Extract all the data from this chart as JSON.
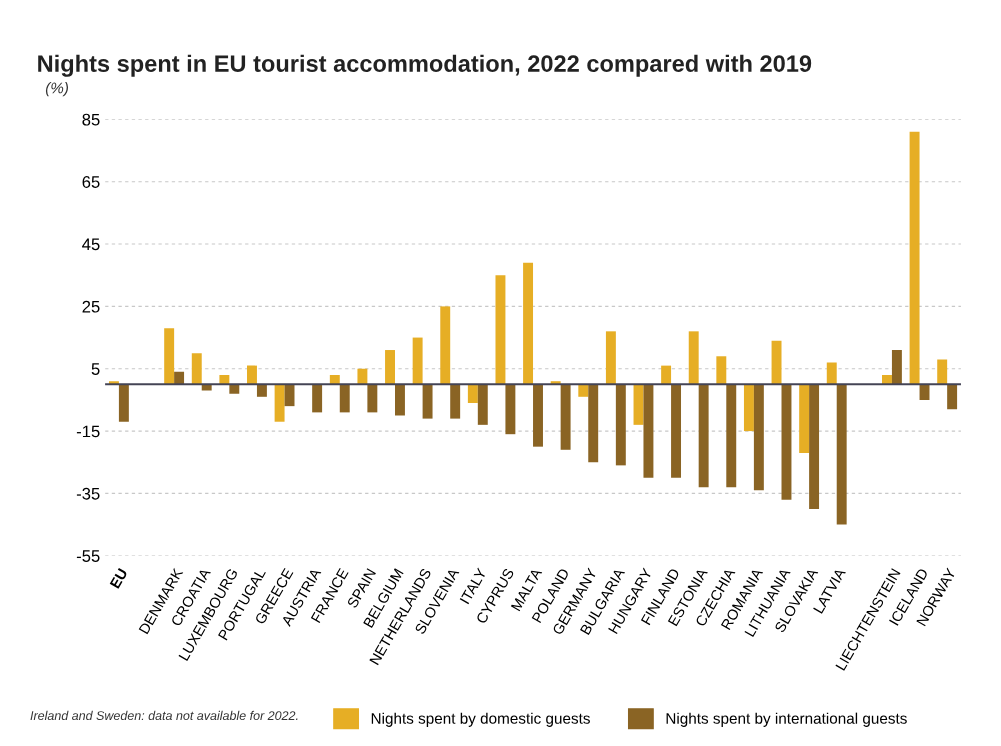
{
  "chart_data": {
    "type": "bar",
    "title": "Nights spent in EU tourist accommodation, 2022 compared with 2019",
    "ylabel": "(%)",
    "categories": [
      "EU",
      null,
      "DENMARK",
      "CROATIA",
      "LUXEMBOURG",
      "PORTUGAL",
      "GREECE",
      "AUSTRIA",
      "FRANCE",
      "SPAIN",
      "BELGIUM",
      "NETHERLANDS",
      "SLOVENIA",
      "ITALY",
      "CYPRUS",
      "MALTA",
      "POLAND",
      "GERMANY",
      "BULGARIA",
      "HUNGARY",
      "FINLAND",
      "ESTONIA",
      "CZECHIA",
      "ROMANIA",
      "LITHUANIA",
      "SLOVAKIA",
      "LATVIA",
      null,
      "LIECHTENSTEIN",
      "ICELAND",
      "NORWAY"
    ],
    "series": [
      {
        "name": "Nights spent by domestic guests",
        "color": "#e6ae25",
        "values": [
          1,
          null,
          18,
          10,
          3,
          6,
          -12,
          0,
          3,
          5,
          11,
          15,
          25,
          -6,
          35,
          39,
          1,
          -4,
          17,
          -13,
          6,
          17,
          9,
          -15,
          14,
          -22,
          7,
          null,
          3,
          81,
          8
        ]
      },
      {
        "name": "Nights spent by international guests",
        "color": "#8a6424",
        "values": [
          -12,
          null,
          4,
          -2,
          -3,
          -4,
          -7,
          -9,
          -9,
          -9,
          -10,
          -11,
          -11,
          -13,
          -16,
          -20,
          -21,
          -25,
          -26,
          -30,
          -30,
          -33,
          -33,
          -34,
          -37,
          -40,
          -45,
          null,
          11,
          -5,
          -8
        ]
      }
    ],
    "ylim": [
      -55,
      85
    ],
    "yticks": [
      -55,
      -35,
      -15,
      5,
      25,
      45,
      65,
      85
    ],
    "grid": "y",
    "legend": "bottom",
    "annotations": [
      "Ireland and Sweden: data not available for 2022."
    ]
  }
}
